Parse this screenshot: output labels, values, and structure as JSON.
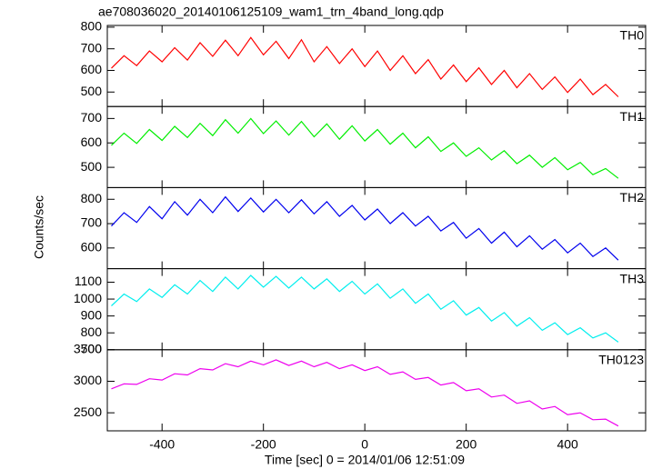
{
  "chart_data": {
    "type": "line",
    "title": "ae708036020_20140106125109_wam1_trn_4band_long.qdp",
    "xlabel": "Time [sec] 0 = 2014/01/06 12:51:09",
    "ylabel": "Counts/sec",
    "xlim": [
      -508,
      554
    ],
    "xticks": [
      -400,
      -200,
      0,
      200,
      400
    ],
    "x": [
      -500,
      -475,
      -450,
      -425,
      -400,
      -375,
      -350,
      -325,
      -300,
      -275,
      -250,
      -225,
      -200,
      -175,
      -150,
      -125,
      -100,
      -75,
      -50,
      -25,
      0,
      25,
      50,
      75,
      100,
      125,
      150,
      175,
      200,
      225,
      250,
      275,
      300,
      325,
      350,
      375,
      400,
      425,
      450,
      475,
      500
    ],
    "series": [
      {
        "name": "TH0",
        "color": "#ff0000",
        "ylim": [
          433,
          808
        ],
        "yticks": [
          500,
          600,
          700,
          800
        ],
        "values": [
          610,
          668,
          622,
          690,
          640,
          705,
          648,
          728,
          665,
          740,
          668,
          752,
          672,
          735,
          655,
          742,
          640,
          710,
          632,
          700,
          618,
          690,
          600,
          668,
          585,
          650,
          560,
          625,
          548,
          612,
          535,
          600,
          520,
          585,
          512,
          570,
          498,
          560,
          488,
          535,
          478
        ]
      },
      {
        "name": "TH1",
        "color": "#00ee00",
        "ylim": [
          417,
          749
        ],
        "yticks": [
          500,
          600,
          700
        ],
        "values": [
          590,
          640,
          598,
          655,
          610,
          668,
          622,
          680,
          630,
          695,
          640,
          700,
          638,
          690,
          632,
          688,
          625,
          678,
          615,
          670,
          608,
          655,
          595,
          640,
          580,
          625,
          565,
          600,
          545,
          580,
          530,
          568,
          515,
          550,
          500,
          540,
          490,
          520,
          470,
          495,
          455
        ]
      },
      {
        "name": "TH2",
        "color": "#0000ee",
        "ylim": [
          515,
          848
        ],
        "yticks": [
          600,
          700,
          800
        ],
        "values": [
          690,
          745,
          705,
          770,
          720,
          790,
          735,
          800,
          745,
          810,
          750,
          805,
          748,
          800,
          745,
          798,
          740,
          790,
          730,
          775,
          715,
          760,
          700,
          745,
          690,
          730,
          670,
          705,
          640,
          680,
          620,
          665,
          605,
          650,
          595,
          635,
          580,
          620,
          565,
          600,
          550
        ]
      },
      {
        "name": "TH3",
        "color": "#00eeee",
        "ylim": [
          700,
          1180
        ],
        "yticks": [
          700,
          800,
          900,
          1000,
          1100
        ],
        "values": [
          960,
          1030,
          985,
          1060,
          1010,
          1085,
          1030,
          1110,
          1045,
          1130,
          1060,
          1140,
          1070,
          1135,
          1065,
          1130,
          1060,
          1120,
          1045,
          1105,
          1030,
          1090,
          1005,
          1060,
          975,
          1030,
          940,
          990,
          905,
          950,
          870,
          920,
          840,
          890,
          815,
          860,
          790,
          830,
          770,
          800,
          745
        ]
      },
      {
        "name": "TH0123",
        "color": "#ee00ee",
        "ylim": [
          2214,
          3500
        ],
        "yticks": [
          2500,
          3000,
          3500
        ],
        "values": [
          2880,
          2960,
          2950,
          3040,
          3020,
          3120,
          3100,
          3200,
          3180,
          3280,
          3230,
          3320,
          3260,
          3340,
          3250,
          3320,
          3230,
          3300,
          3200,
          3260,
          3170,
          3230,
          3110,
          3150,
          3030,
          3060,
          2940,
          2980,
          2850,
          2880,
          2750,
          2780,
          2650,
          2690,
          2560,
          2600,
          2470,
          2500,
          2390,
          2400,
          2290
        ]
      }
    ]
  }
}
